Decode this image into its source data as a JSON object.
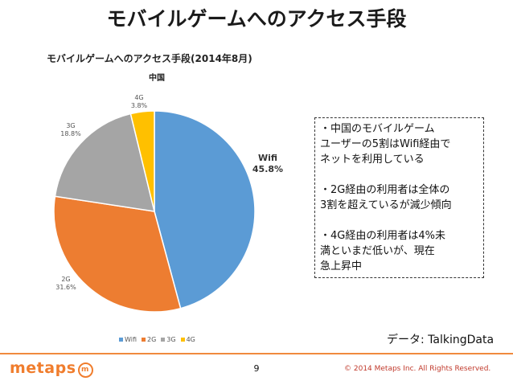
{
  "slide": {
    "title": "モバイルゲームへのアクセス手段",
    "note": [
      "・中国のモバイルゲーム\nユーザーの5割はWifi経由で\nネットを利用している",
      "・2G経由の利用者は全体の\n3割を超えているが減少傾向",
      "・4G経由の利用者は4%未\n満といまだ低いが、現在\n急上昇中"
    ],
    "source": "データ: TalkingData",
    "page_number": "9",
    "logo_text": "metaps",
    "logo_mark": "m",
    "copyright": "© 2014 Metaps Inc. All Rights Reserved."
  },
  "chart_data": {
    "type": "pie",
    "title": "モバイルゲームへのアクセス手段(2014年8月)",
    "subtitle": "中国",
    "categories": [
      "Wifi",
      "2G",
      "3G",
      "4G"
    ],
    "values": [
      45.8,
      31.6,
      18.8,
      3.8
    ],
    "value_labels": [
      "45.8%",
      "31.6%",
      "18.8%",
      "3.8%"
    ],
    "colors": [
      "#5b9bd5",
      "#ed7d31",
      "#a5a5a5",
      "#ffc000"
    ],
    "legend_position": "bottom"
  }
}
